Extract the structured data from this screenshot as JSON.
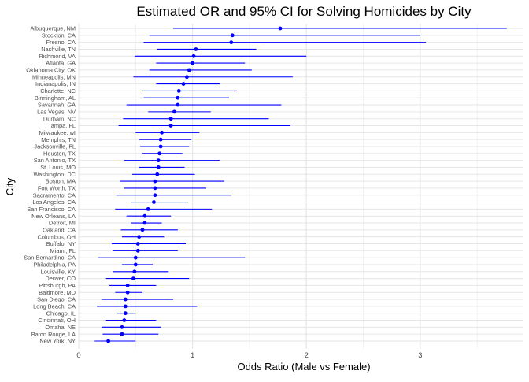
{
  "chart_data": {
    "type": "scatter",
    "title": "Estimated OR and 95% CI for Solving Homicides by City",
    "xlabel": "Odds Ratio (Male vs Female)",
    "ylabel": "City",
    "xlim": [
      0,
      3.9
    ],
    "xticks": [
      0,
      1,
      2,
      3
    ],
    "grid": true,
    "point_color": "#0000ff",
    "interval_color": "#0000ff",
    "rows": [
      {
        "city": "Albuquerque, NM",
        "or": 1.77,
        "lo": 0.83,
        "hi": 3.76
      },
      {
        "city": "Stockton, CA",
        "or": 1.35,
        "lo": 0.62,
        "hi": 3.0
      },
      {
        "city": "Fresno, CA",
        "or": 1.34,
        "lo": 0.57,
        "hi": 3.05
      },
      {
        "city": "Nashville, TN",
        "or": 1.03,
        "lo": 0.69,
        "hi": 1.56
      },
      {
        "city": "Richmond, VA",
        "or": 1.01,
        "lo": 0.49,
        "hi": 2.0
      },
      {
        "city": "Atlanta, GA",
        "or": 1.0,
        "lo": 0.68,
        "hi": 1.46
      },
      {
        "city": "Oklahoma City, OK",
        "or": 0.97,
        "lo": 0.62,
        "hi": 1.52
      },
      {
        "city": "Minneapolis, MN",
        "or": 0.95,
        "lo": 0.48,
        "hi": 1.88
      },
      {
        "city": "Indianapolis, IN",
        "or": 0.92,
        "lo": 0.68,
        "hi": 1.24
      },
      {
        "city": "Charlotte, NC",
        "or": 0.88,
        "lo": 0.56,
        "hi": 1.39
      },
      {
        "city": "Birmingham, AL",
        "or": 0.87,
        "lo": 0.57,
        "hi": 1.32
      },
      {
        "city": "Savannah, GA",
        "or": 0.87,
        "lo": 0.42,
        "hi": 1.78
      },
      {
        "city": "Las Vegas, NV",
        "or": 0.84,
        "lo": 0.61,
        "hi": 1.16
      },
      {
        "city": "Durham, NC",
        "or": 0.81,
        "lo": 0.39,
        "hi": 1.67
      },
      {
        "city": "Tampa, FL",
        "or": 0.81,
        "lo": 0.35,
        "hi": 1.86
      },
      {
        "city": "Milwaukee, wI",
        "or": 0.73,
        "lo": 0.5,
        "hi": 1.06
      },
      {
        "city": "Memphis, TN",
        "or": 0.72,
        "lo": 0.53,
        "hi": 0.99
      },
      {
        "city": "Jacksonville, FL",
        "or": 0.72,
        "lo": 0.54,
        "hi": 0.97
      },
      {
        "city": "Houston, TX",
        "or": 0.71,
        "lo": 0.56,
        "hi": 0.91
      },
      {
        "city": "San Antonio, TX",
        "or": 0.7,
        "lo": 0.4,
        "hi": 1.24
      },
      {
        "city": "St. Louis, MO",
        "or": 0.7,
        "lo": 0.53,
        "hi": 0.93
      },
      {
        "city": "Washington, DC",
        "or": 0.69,
        "lo": 0.47,
        "hi": 1.02
      },
      {
        "city": "Boston, MA",
        "or": 0.67,
        "lo": 0.36,
        "hi": 1.28
      },
      {
        "city": "Fort Worth, TX",
        "or": 0.67,
        "lo": 0.4,
        "hi": 1.12
      },
      {
        "city": "Sacramento, CA",
        "or": 0.67,
        "lo": 0.33,
        "hi": 1.34
      },
      {
        "city": "Los Angeles, CA",
        "or": 0.66,
        "lo": 0.46,
        "hi": 0.96
      },
      {
        "city": "San Francisco, CA",
        "or": 0.61,
        "lo": 0.32,
        "hi": 1.17
      },
      {
        "city": "New Orleans, LA",
        "or": 0.58,
        "lo": 0.42,
        "hi": 0.81
      },
      {
        "city": "Detroit, MI",
        "or": 0.58,
        "lo": 0.46,
        "hi": 0.73
      },
      {
        "city": "Oakland, CA",
        "or": 0.56,
        "lo": 0.37,
        "hi": 0.87
      },
      {
        "city": "Columbus, OH",
        "or": 0.53,
        "lo": 0.38,
        "hi": 0.75
      },
      {
        "city": "Buffalo, NY",
        "or": 0.52,
        "lo": 0.29,
        "hi": 0.94
      },
      {
        "city": "Miami, FL",
        "or": 0.52,
        "lo": 0.3,
        "hi": 0.87
      },
      {
        "city": "San Bernardino, CA",
        "or": 0.5,
        "lo": 0.17,
        "hi": 1.46
      },
      {
        "city": "Philadelphia, PA",
        "or": 0.5,
        "lo": 0.38,
        "hi": 0.65
      },
      {
        "city": "Louisville, KY",
        "or": 0.49,
        "lo": 0.3,
        "hi": 0.79
      },
      {
        "city": "Denver, CO",
        "or": 0.48,
        "lo": 0.24,
        "hi": 0.97
      },
      {
        "city": "Pittsburgh, PA",
        "or": 0.43,
        "lo": 0.27,
        "hi": 0.68
      },
      {
        "city": "Baltimore, MD",
        "or": 0.43,
        "lo": 0.32,
        "hi": 0.56
      },
      {
        "city": "San Diego, CA",
        "or": 0.41,
        "lo": 0.2,
        "hi": 0.83
      },
      {
        "city": "Long Beach, CA",
        "or": 0.41,
        "lo": 0.16,
        "hi": 1.04
      },
      {
        "city": "Chicago, IL",
        "or": 0.41,
        "lo": 0.34,
        "hi": 0.5
      },
      {
        "city": "Cincinnati, OH",
        "or": 0.4,
        "lo": 0.24,
        "hi": 0.68
      },
      {
        "city": "Omaha, NE",
        "or": 0.38,
        "lo": 0.2,
        "hi": 0.72
      },
      {
        "city": "Baton Rouge, LA",
        "or": 0.38,
        "lo": 0.21,
        "hi": 0.7
      },
      {
        "city": "New York, NY",
        "or": 0.26,
        "lo": 0.14,
        "hi": 0.5
      }
    ]
  }
}
